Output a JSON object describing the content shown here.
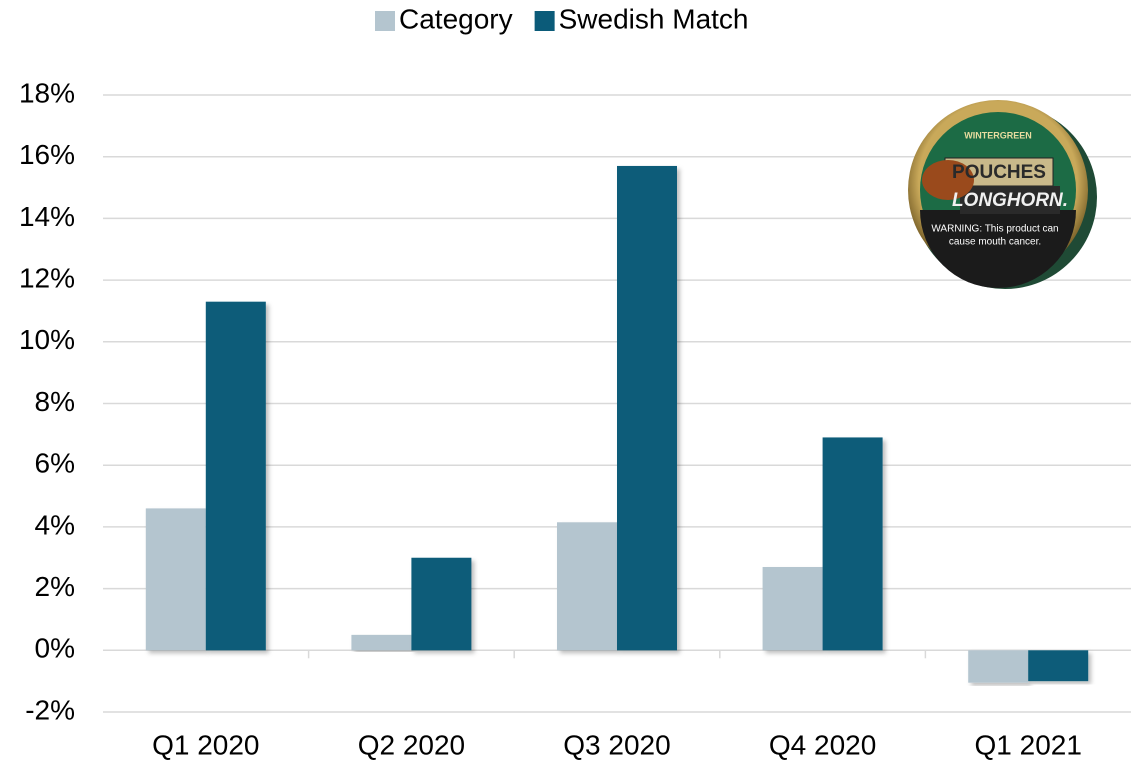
{
  "chart_data": {
    "type": "bar",
    "categories": [
      "Q1 2020",
      "Q2 2020",
      "Q3 2020",
      "Q4 2020",
      "Q1 2021"
    ],
    "series": [
      {
        "name": "Category",
        "color": "#b4c5cf",
        "values": [
          4.6,
          0.5,
          4.15,
          2.7,
          -1.05
        ]
      },
      {
        "name": "Swedish Match",
        "color": "#0b5b79",
        "values": [
          11.3,
          3.0,
          15.7,
          6.9,
          -1.0
        ]
      }
    ],
    "ylim": [
      -2,
      18
    ],
    "yticks": [
      {
        "value": -2,
        "label": "-2%"
      },
      {
        "value": 0,
        "label": "0%"
      },
      {
        "value": 2,
        "label": "2%"
      },
      {
        "value": 4,
        "label": "4%"
      },
      {
        "value": 6,
        "label": "6%"
      },
      {
        "value": 8,
        "label": "8%"
      },
      {
        "value": 10,
        "label": "10%"
      },
      {
        "value": 12,
        "label": "12%"
      },
      {
        "value": 14,
        "label": "14%"
      },
      {
        "value": 16,
        "label": "16%"
      },
      {
        "value": 18,
        "label": "18%"
      }
    ],
    "grid": true,
    "legend": "top",
    "annotations": [
      "WINTERGREEN",
      "POUCHES",
      "LONGHORN.",
      "WARNING: This product can",
      "cause mouth cancer."
    ]
  }
}
